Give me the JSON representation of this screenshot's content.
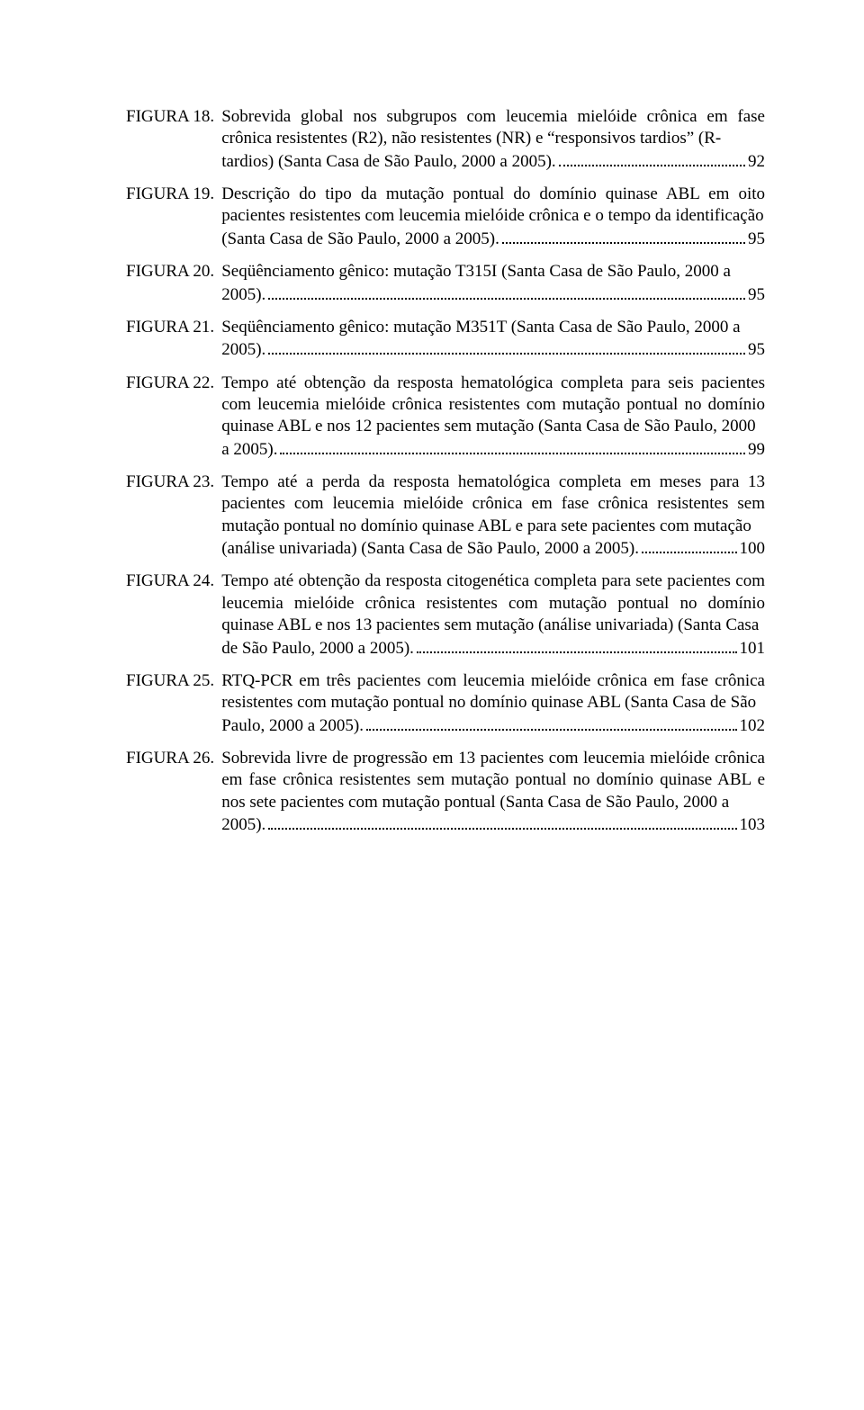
{
  "page": {
    "background_color": "#ffffff",
    "text_color": "#000000",
    "font_family": "Times New Roman",
    "body_fontsize_pt": 14
  },
  "entries": [
    {
      "label": "FIGURA 18.",
      "pre": "Sobrevida global nos subgrupos com leucemia mielóide crônica em fase crônica resistentes (R2), não resistentes (NR) e “responsivos tardios” (R-",
      "last": "tardios) (Santa Casa de São Paulo, 2000 a 2005).",
      "page": "92"
    },
    {
      "label": "FIGURA 19.",
      "pre": "Descrição do tipo da mutação pontual do domínio quinase ABL em oito pacientes resistentes com leucemia mielóide crônica e o tempo da identificação",
      "last": "(Santa Casa de São Paulo, 2000 a 2005).",
      "page": "95"
    },
    {
      "label": "FIGURA 20.",
      "pre": "Seqüênciamento gênico: mutação T315I (Santa Casa de São Paulo, 2000 a",
      "last": "2005).",
      "page": "95"
    },
    {
      "label": "FIGURA 21.",
      "pre": "Seqüênciamento gênico: mutação M351T (Santa Casa de São Paulo, 2000 a",
      "last": "2005).",
      "page": "95"
    },
    {
      "label": "FIGURA 22.",
      "pre": "Tempo até obtenção da resposta hematológica completa para seis pacientes com leucemia mielóide crônica resistentes com mutação pontual no domínio quinase ABL e nos 12 pacientes sem mutação (Santa Casa de São Paulo, 2000",
      "last": "a 2005).",
      "page": "99"
    },
    {
      "label": "FIGURA 23.",
      "pre": "Tempo até a perda da resposta hematológica completa em meses para 13 pacientes com leucemia mielóide crônica em fase crônica resistentes sem mutação pontual no domínio quinase ABL e para sete pacientes com mutação",
      "last": "(análise univariada) (Santa Casa de São Paulo, 2000 a 2005).",
      "page": "100"
    },
    {
      "label": "FIGURA 24.",
      "pre": "Tempo até obtenção da resposta citogenética completa para sete pacientes com leucemia mielóide crônica resistentes com mutação pontual no domínio quinase ABL e nos 13 pacientes sem mutação (análise univariada) (Santa Casa",
      "last": "de São Paulo, 2000 a 2005).",
      "page": "101"
    },
    {
      "label": "FIGURA 25.",
      "pre": "RTQ-PCR em três pacientes com leucemia mielóide crônica em fase crônica resistentes com mutação pontual no domínio quinase ABL (Santa Casa de São",
      "last": "Paulo, 2000 a 2005).",
      "page": "102"
    },
    {
      "label": "FIGURA 26.",
      "pre": "Sobrevida livre de progressão em 13 pacientes com leucemia mielóide crônica em fase crônica resistentes sem mutação pontual no domínio quinase ABL e nos sete pacientes com mutação pontual (Santa Casa de São Paulo, 2000 a",
      "last": "2005).",
      "page": "103"
    }
  ]
}
